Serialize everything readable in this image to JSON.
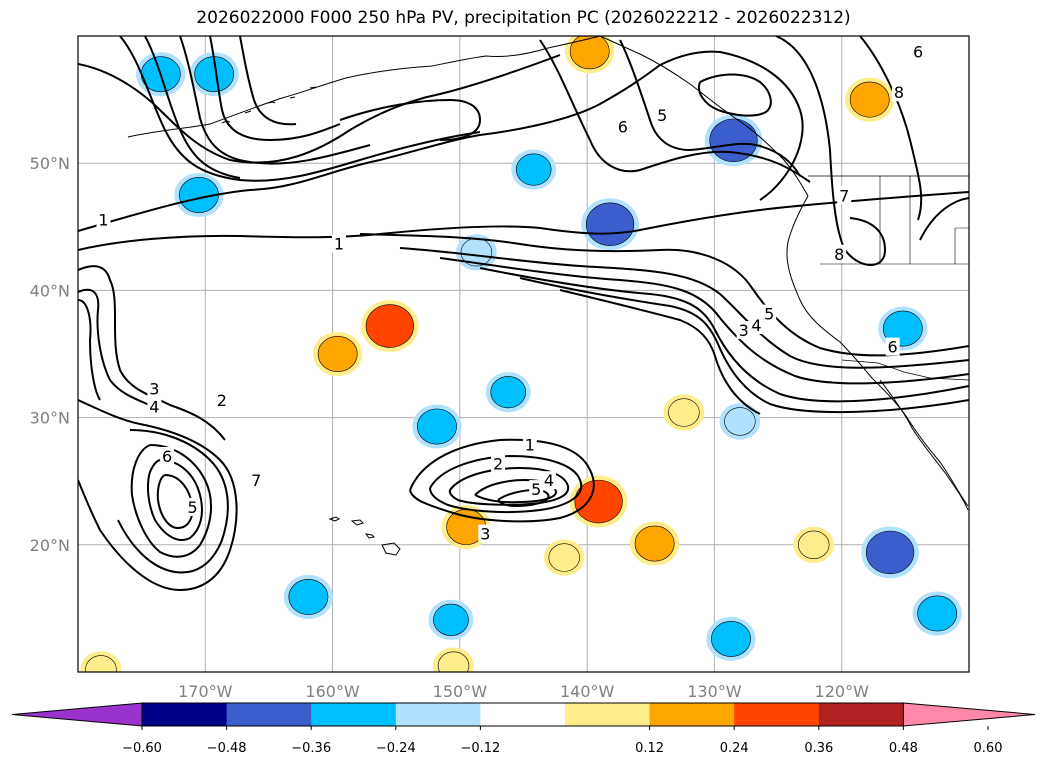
{
  "chart_data": {
    "type": "map-contour",
    "title": "2026022000 F000 250 hPa PV, precipitation PC (2026022212 - 2026022312)",
    "projection": "PlateCarree",
    "lon_range": [
      -180,
      -110
    ],
    "lat_range": [
      10,
      60
    ],
    "lon_ticks": [
      {
        "value": -170,
        "label": "170°W"
      },
      {
        "value": -160,
        "label": "160°W"
      },
      {
        "value": -150,
        "label": "150°W"
      },
      {
        "value": -140,
        "label": "140°W"
      },
      {
        "value": -130,
        "label": "130°W"
      },
      {
        "value": -120,
        "label": "120°W"
      }
    ],
    "lat_ticks": [
      {
        "value": 20,
        "label": "20°N"
      },
      {
        "value": 30,
        "label": "30°N"
      },
      {
        "value": 40,
        "label": "40°N"
      },
      {
        "value": 50,
        "label": "50°N"
      }
    ],
    "grid": true,
    "contour_field": "250 hPa PV",
    "contour_levels": [
      1,
      2,
      3,
      4,
      5,
      6,
      7,
      8
    ],
    "contour_labels": [
      {
        "text": "1",
        "lon": -178,
        "lat": 45.5
      },
      {
        "text": "1",
        "lon": -159.5,
        "lat": 43.6
      },
      {
        "text": "3",
        "lon": -174,
        "lat": 32.2
      },
      {
        "text": "4",
        "lon": -174,
        "lat": 30.8
      },
      {
        "text": "2",
        "lon": -168.7,
        "lat": 31.3
      },
      {
        "text": "6",
        "lon": -173,
        "lat": 26.9
      },
      {
        "text": "7",
        "lon": -166,
        "lat": 25.0
      },
      {
        "text": "5",
        "lon": -171,
        "lat": 22.9
      },
      {
        "text": "1",
        "lon": -144.5,
        "lat": 27.8
      },
      {
        "text": "2",
        "lon": -147,
        "lat": 26.3
      },
      {
        "text": "5",
        "lon": -144,
        "lat": 24.3
      },
      {
        "text": "4",
        "lon": -143,
        "lat": 25.0
      },
      {
        "text": "3",
        "lon": -148,
        "lat": 20.8
      },
      {
        "text": "6",
        "lon": -137.2,
        "lat": 52.8
      },
      {
        "text": "5",
        "lon": -134.1,
        "lat": 53.7
      },
      {
        "text": "7",
        "lon": -119.8,
        "lat": 47.4
      },
      {
        "text": "8",
        "lon": -120.2,
        "lat": 42.8
      },
      {
        "text": "8",
        "lon": -115.5,
        "lat": 55.5
      },
      {
        "text": "5",
        "lon": -125.7,
        "lat": 38.1
      },
      {
        "text": "4",
        "lon": -126.7,
        "lat": 37.2
      },
      {
        "text": "3",
        "lon": -127.7,
        "lat": 36.8
      },
      {
        "text": "6",
        "lon": -114,
        "lat": 58.7
      },
      {
        "text": "6",
        "lon": -116,
        "lat": 35.5
      }
    ],
    "colorbar": {
      "field": "precipitation PC",
      "ticks": [
        "−0.60",
        "−0.48",
        "−0.36",
        "−0.24",
        "−0.12",
        "0.12",
        "0.24",
        "0.36",
        "0.48",
        "0.60"
      ],
      "boundaries": [
        -0.6,
        -0.48,
        -0.36,
        -0.24,
        -0.12,
        0.12,
        0.24,
        0.36,
        0.48,
        0.6
      ],
      "colors": [
        "#9933cc",
        "#00008b",
        "#3a5fcd",
        "#00bfff",
        "#b0e2ff",
        "#ffffff",
        "#ffec8b",
        "#ffa500",
        "#ff4500",
        "#b22222",
        "#ff88aa"
      ],
      "extend": "both"
    },
    "precip_blobs": [
      {
        "lon": -173.5,
        "lat": 57.0,
        "value": -0.3
      },
      {
        "lon": -169.3,
        "lat": 57.0,
        "value": -0.3
      },
      {
        "lon": -170.5,
        "lat": 47.5,
        "value": -0.3
      },
      {
        "lon": -144.2,
        "lat": 49.5,
        "value": -0.25
      },
      {
        "lon": -138.2,
        "lat": 45.2,
        "value": -0.4
      },
      {
        "lon": -128.5,
        "lat": 51.8,
        "value": -0.4
      },
      {
        "lon": -139.8,
        "lat": 58.8,
        "value": 0.3
      },
      {
        "lon": -117.8,
        "lat": 55.0,
        "value": 0.3
      },
      {
        "lon": -155.5,
        "lat": 37.2,
        "value": 0.4
      },
      {
        "lon": -159.6,
        "lat": 35.0,
        "value": 0.3
      },
      {
        "lon": -146.2,
        "lat": 32.0,
        "value": -0.25
      },
      {
        "lon": -151.8,
        "lat": 29.3,
        "value": -0.3
      },
      {
        "lon": -149.5,
        "lat": 21.4,
        "value": 0.3
      },
      {
        "lon": -139.1,
        "lat": 23.4,
        "value": 0.4
      },
      {
        "lon": -134.7,
        "lat": 20.1,
        "value": 0.3
      },
      {
        "lon": -161.9,
        "lat": 15.9,
        "value": -0.3
      },
      {
        "lon": -128.7,
        "lat": 12.6,
        "value": -0.3
      },
      {
        "lon": -116.2,
        "lat": 19.4,
        "value": -0.4
      },
      {
        "lon": -112.5,
        "lat": 14.6,
        "value": -0.3
      },
      {
        "lon": -115.2,
        "lat": 37.0,
        "value": -0.3
      },
      {
        "lon": -148.7,
        "lat": 43.0,
        "value": -0.2
      },
      {
        "lon": -132.4,
        "lat": 30.4,
        "value": 0.2
      },
      {
        "lon": -128.0,
        "lat": 29.7,
        "value": -0.2
      },
      {
        "lon": -150.5,
        "lat": 10.5,
        "value": 0.2
      },
      {
        "lon": -178.2,
        "lat": 10.2,
        "value": 0.2
      },
      {
        "lon": -150.7,
        "lat": 14.1,
        "value": -0.25
      },
      {
        "lon": -122.2,
        "lat": 20.0,
        "value": 0.2
      },
      {
        "lon": -141.8,
        "lat": 19.0,
        "value": 0.2
      }
    ]
  }
}
